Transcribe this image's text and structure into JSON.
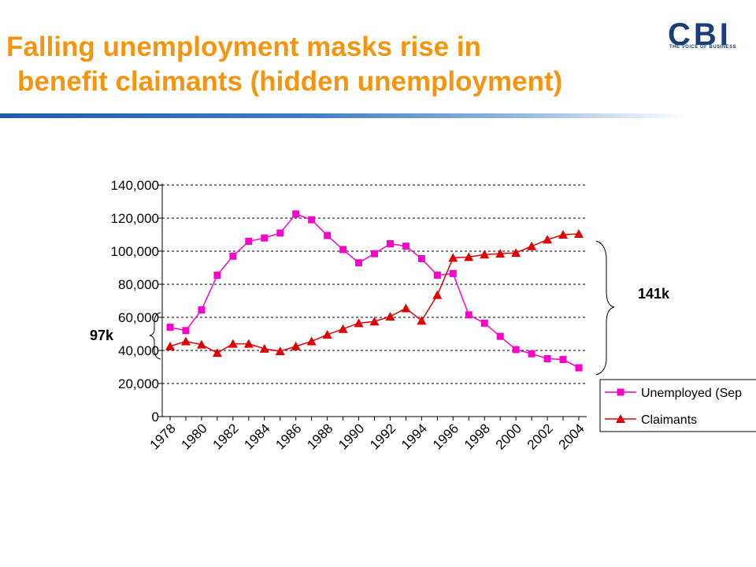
{
  "slide": {
    "title_line1": "Falling unemployment masks  rise in",
    "title_line2": "benefit claimants (hidden unemployment)",
    "logo_text": "CBI",
    "logo_tagline": "THE VOICE OF BUSINESS",
    "title_color": "#f5950f",
    "rule_color": "#1c5fa8"
  },
  "annotations": {
    "left_label": "97k",
    "right_label": "141k"
  },
  "chart_data": {
    "type": "line",
    "title": "",
    "xlabel": "",
    "ylabel": "",
    "ylim": [
      0,
      140000
    ],
    "yticks": [
      0,
      20000,
      40000,
      60000,
      80000,
      100000,
      120000,
      140000
    ],
    "ytick_labels": [
      "0",
      "20,000",
      "40,000",
      "60,000",
      "80,000",
      "100,000",
      "120,000",
      "140,000"
    ],
    "xtick_labels": [
      "1978",
      "1980",
      "1982",
      "1984",
      "1986",
      "1988",
      "1990",
      "1992",
      "1994",
      "1996",
      "1998",
      "2000",
      "2002",
      "2004"
    ],
    "x": [
      1978,
      1979,
      1980,
      1981,
      1982,
      1983,
      1984,
      1985,
      1986,
      1987,
      1988,
      1989,
      1990,
      1991,
      1992,
      1993,
      1994,
      1995,
      1996,
      1997,
      1998,
      1999,
      2000,
      2001,
      2002,
      2003,
      2004
    ],
    "grid": "horizontal dashed",
    "legend_position": "right",
    "series": [
      {
        "name": "Unemployed (Sep",
        "color": "#ff00cc",
        "marker": "square",
        "values": [
          54000,
          52000,
          64500,
          85500,
          97000,
          106000,
          108000,
          111000,
          122500,
          119000,
          109500,
          101000,
          93000,
          98500,
          104500,
          103000,
          95500,
          85500,
          86500,
          61500,
          56500,
          48500,
          40500,
          38000,
          35000,
          34500,
          29500
        ]
      },
      {
        "name": "Claimants",
        "color": "#e00000",
        "marker": "triangle",
        "values": [
          42500,
          45500,
          43500,
          38500,
          44000,
          44000,
          41000,
          39500,
          42500,
          45500,
          49500,
          53000,
          56500,
          57500,
          60500,
          65500,
          58000,
          73500,
          96000,
          96500,
          98000,
          98500,
          99000,
          103000,
          107000,
          110000,
          110500
        ]
      }
    ]
  }
}
